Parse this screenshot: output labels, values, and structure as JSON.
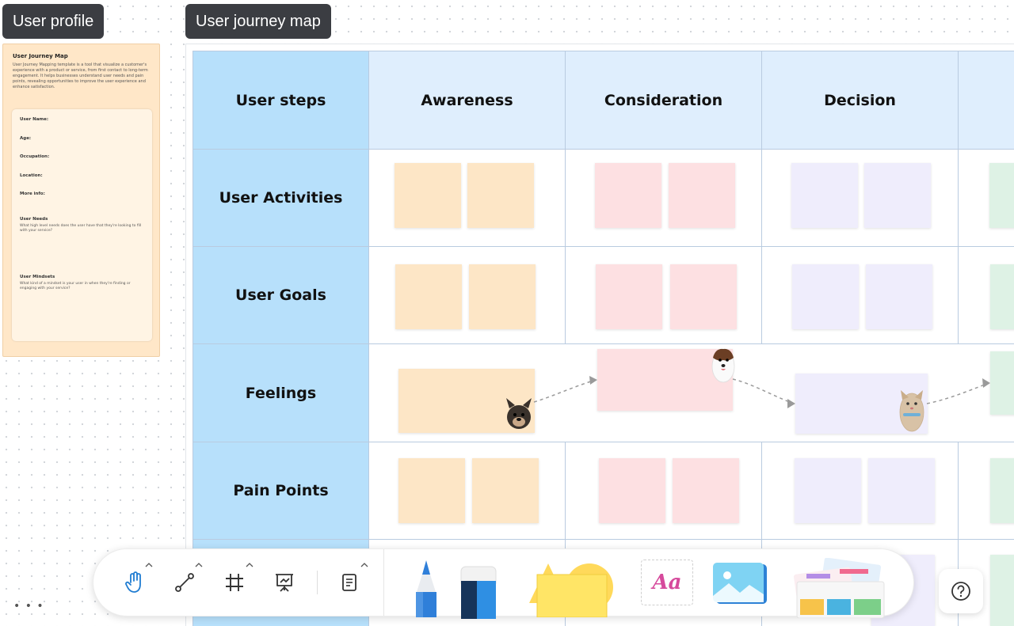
{
  "labels": {
    "user_profile": "User profile",
    "journey_map": "User journey map"
  },
  "profile": {
    "title": "User Journey Map",
    "description": "User Journey Mapping template is a tool that visualize a customer's experience with a product or service, from first contact to long-term engagement. It helps businesses understand user needs and pain points, revealing opportunities to improve the user experience and enhance satisfaction.",
    "fields": [
      "User Name:",
      "Age:",
      "Occupation:",
      "Location:",
      "More info:"
    ],
    "needs_title": "User Needs",
    "needs_desc": "What high level needs does the user have that they're looking to fill with your service?",
    "mindsets_title": "User Mindsets",
    "mindsets_desc": "What kind of a mindset is your user in when they're finding or engaging with your service?"
  },
  "table": {
    "corner": "User steps",
    "stages": [
      "Awareness",
      "Consideration",
      "Decision"
    ],
    "rows": [
      "User Activities",
      "User Goals",
      "Feelings",
      "Pain Points"
    ]
  },
  "colors": {
    "orange": "#fde6c6",
    "pink": "#fde0e2",
    "lavender": "#efedfc",
    "mint": "#def2e5",
    "row_header": "#b7e0fb",
    "col_header": "#dfeefd"
  },
  "toolbar": {
    "tools": [
      "hand-icon",
      "connector-icon",
      "frame-icon",
      "presentation-icon",
      "note-icon"
    ],
    "creation_tools": [
      "pen",
      "eraser",
      "shapes",
      "text",
      "image",
      "templates"
    ],
    "text_tool_label": "Aa"
  },
  "more_label": "• • •"
}
